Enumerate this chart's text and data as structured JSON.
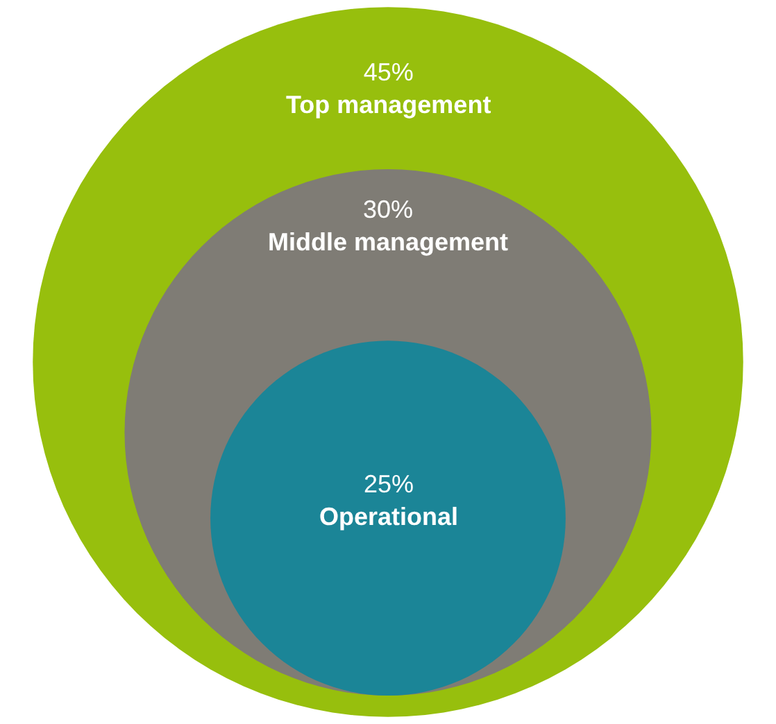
{
  "chart_data": {
    "type": "other",
    "categories": [
      "Top management",
      "Middle management",
      "Operational"
    ],
    "values": [
      45,
      30,
      25
    ],
    "value_labels": [
      "45%",
      "30%",
      "25%"
    ],
    "colors": [
      "#97bf0d",
      "#7f7c75",
      "#1b8597"
    ]
  }
}
